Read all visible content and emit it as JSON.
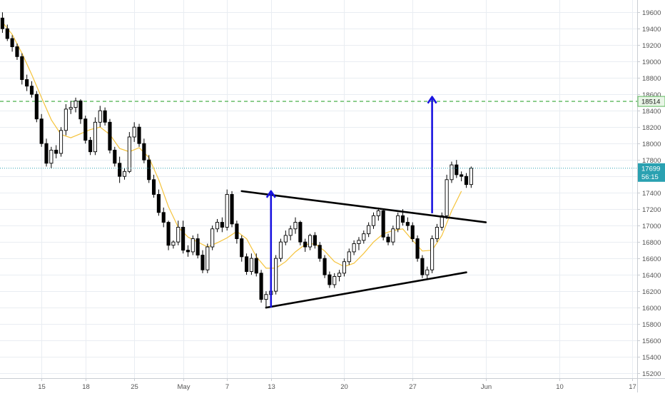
{
  "colors": {
    "up": "#ffffff",
    "down": "#000000",
    "wick": "#000000",
    "ma": "#f5c33b",
    "grid": "#e9edf2",
    "axis_text": "#555555",
    "trend_line": "#000000",
    "target_arrow": "#1a14e0",
    "resistance": "#5cb85c",
    "price_line": "#2aa1b1",
    "price_badge": "#2aa1b1"
  },
  "chart_data": {
    "type": "candlestick",
    "x_tick_labels": [
      {
        "label": "15",
        "index": 8
      },
      {
        "label": "18",
        "index": 17
      },
      {
        "label": "25",
        "index": 27
      },
      {
        "label": "May",
        "index": 37
      },
      {
        "label": "7",
        "index": 46
      },
      {
        "label": "13",
        "index": 55
      },
      {
        "label": "20",
        "index": 70
      },
      {
        "label": "27",
        "index": 84
      },
      {
        "label": "Jun",
        "index": 99
      },
      {
        "label": "10",
        "index": 114
      },
      {
        "label": "17",
        "index": 129
      }
    ],
    "y_ticks": [
      15200,
      15400,
      15600,
      15800,
      16000,
      16200,
      16400,
      16600,
      16800,
      17000,
      17200,
      17400,
      17600,
      17800,
      18000,
      18200,
      18400,
      18600,
      18800,
      19000,
      19200,
      19400,
      19600
    ],
    "ylim": [
      15140,
      19750
    ],
    "xlim": [
      -0.5,
      130
    ],
    "grid": true,
    "horizontal_level": {
      "label": "18514",
      "value": 18514
    },
    "last_price": {
      "label": "17699",
      "value": 17699
    },
    "countdown": "56:15",
    "annotations": {
      "triangle_upper_line": [
        [
          49,
          17420
        ],
        [
          99,
          17040
        ]
      ],
      "triangle_lower_line": [
        [
          54,
          16000
        ],
        [
          95,
          16430
        ]
      ],
      "arrow_left": [
        [
          55,
          16000
        ],
        [
          55,
          17420
        ]
      ],
      "arrow_right": [
        [
          88,
          17150
        ],
        [
          88,
          18570
        ]
      ]
    },
    "series": [
      {
        "type": "ohlc",
        "values": [
          [
            19530,
            19600,
            19350,
            19400
          ],
          [
            19400,
            19450,
            19250,
            19280
          ],
          [
            19280,
            19320,
            19120,
            19180
          ],
          [
            19180,
            19220,
            19020,
            19060
          ],
          [
            19060,
            19100,
            18720,
            18780
          ],
          [
            18780,
            18840,
            18640,
            18700
          ],
          [
            18700,
            18760,
            18560,
            18600
          ],
          [
            18600,
            18640,
            18260,
            18300
          ],
          [
            18300,
            18360,
            17960,
            18000
          ],
          [
            18000,
            18060,
            17720,
            17760
          ],
          [
            17760,
            17960,
            17700,
            17920
          ],
          [
            17920,
            17980,
            17820,
            17880
          ],
          [
            17880,
            18200,
            17840,
            18160
          ],
          [
            18160,
            18480,
            18100,
            18420
          ],
          [
            18420,
            18520,
            18360,
            18440
          ],
          [
            18440,
            18560,
            18380,
            18520
          ],
          [
            18520,
            18540,
            18240,
            18300
          ],
          [
            18300,
            18340,
            18000,
            18040
          ],
          [
            18040,
            18080,
            17860,
            17900
          ],
          [
            17900,
            18320,
            17860,
            18260
          ],
          [
            18260,
            18460,
            18200,
            18400
          ],
          [
            18400,
            18440,
            18220,
            18260
          ],
          [
            18260,
            18300,
            17880,
            17920
          ],
          [
            17920,
            17960,
            17720,
            17760
          ],
          [
            17760,
            17840,
            17520,
            17600
          ],
          [
            17600,
            17700,
            17560,
            17660
          ],
          [
            17660,
            18140,
            17640,
            18080
          ],
          [
            18080,
            18260,
            18020,
            18200
          ],
          [
            18200,
            18240,
            17960,
            18000
          ],
          [
            18000,
            18060,
            17760,
            17800
          ],
          [
            17800,
            17860,
            17520,
            17560
          ],
          [
            17560,
            17620,
            17340,
            17380
          ],
          [
            17380,
            17440,
            17120,
            17160
          ],
          [
            17160,
            17220,
            16980,
            17040
          ],
          [
            17040,
            17060,
            16700,
            16760
          ],
          [
            16760,
            16820,
            16720,
            16800
          ],
          [
            16800,
            17060,
            16760,
            16980
          ],
          [
            16980,
            17060,
            16660,
            16700
          ],
          [
            16700,
            16760,
            16620,
            16680
          ],
          [
            16680,
            16880,
            16640,
            16840
          ],
          [
            16840,
            16900,
            16600,
            16640
          ],
          [
            16640,
            16700,
            16420,
            16460
          ],
          [
            16460,
            16780,
            16420,
            16740
          ],
          [
            16740,
            17000,
            16700,
            16960
          ],
          [
            16960,
            17080,
            16920,
            17040
          ],
          [
            17040,
            17100,
            16920,
            16980
          ],
          [
            16980,
            17440,
            16940,
            17380
          ],
          [
            17380,
            17420,
            16980,
            17020
          ],
          [
            17020,
            17060,
            16780,
            16840
          ],
          [
            16840,
            16880,
            16560,
            16620
          ],
          [
            16620,
            16660,
            16400,
            16440
          ],
          [
            16440,
            16660,
            16400,
            16600
          ],
          [
            16600,
            16660,
            16380,
            16420
          ],
          [
            16420,
            16460,
            16060,
            16100
          ],
          [
            16100,
            16200,
            16000,
            16160
          ],
          [
            16160,
            16240,
            16120,
            16200
          ],
          [
            16200,
            16640,
            16160,
            16600
          ],
          [
            16600,
            16840,
            16560,
            16800
          ],
          [
            16800,
            16940,
            16760,
            16880
          ],
          [
            16880,
            17000,
            16820,
            16960
          ],
          [
            16960,
            17100,
            16900,
            17040
          ],
          [
            17040,
            17060,
            16760,
            16800
          ],
          [
            16800,
            16840,
            16680,
            16740
          ],
          [
            16740,
            16900,
            16700,
            16880
          ],
          [
            16880,
            16920,
            16720,
            16760
          ],
          [
            16760,
            16800,
            16560,
            16600
          ],
          [
            16600,
            16640,
            16360,
            16400
          ],
          [
            16400,
            16440,
            16240,
            16280
          ],
          [
            16280,
            16420,
            16240,
            16380
          ],
          [
            16380,
            16460,
            16320,
            16420
          ],
          [
            16420,
            16600,
            16380,
            16560
          ],
          [
            16560,
            16720,
            16520,
            16680
          ],
          [
            16680,
            16820,
            16640,
            16780
          ],
          [
            16780,
            16860,
            16700,
            16820
          ],
          [
            16820,
            16940,
            16780,
            16900
          ],
          [
            16900,
            17040,
            16860,
            17000
          ],
          [
            17000,
            17160,
            16960,
            17120
          ],
          [
            17120,
            17220,
            17060,
            17180
          ],
          [
            17180,
            17200,
            16820,
            16860
          ],
          [
            16860,
            16900,
            16760,
            16800
          ],
          [
            16800,
            17000,
            16760,
            16960
          ],
          [
            16960,
            17160,
            16920,
            17120
          ],
          [
            17120,
            17200,
            17000,
            17040
          ],
          [
            17040,
            17100,
            16940,
            17000
          ],
          [
            17000,
            17040,
            16800,
            16840
          ],
          [
            16840,
            16880,
            16560,
            16600
          ],
          [
            16600,
            16640,
            16360,
            16400
          ],
          [
            16400,
            16500,
            16340,
            16460
          ],
          [
            16460,
            16880,
            16420,
            16840
          ],
          [
            16840,
            17020,
            16800,
            16980
          ],
          [
            16980,
            17160,
            16940,
            17120
          ],
          [
            17120,
            17620,
            17080,
            17560
          ],
          [
            17560,
            17780,
            17520,
            17740
          ],
          [
            17740,
            17800,
            17580,
            17620
          ],
          [
            17620,
            17660,
            17540,
            17600
          ],
          [
            17600,
            17640,
            17460,
            17500
          ],
          [
            17500,
            17720,
            17460,
            17699
          ]
        ]
      },
      {
        "type": "ma",
        "values": [
          [
            0,
            19480
          ],
          [
            2,
            19330
          ],
          [
            4,
            19100
          ],
          [
            6,
            18840
          ],
          [
            8,
            18560
          ],
          [
            10,
            18290
          ],
          [
            12,
            18110
          ],
          [
            14,
            18070
          ],
          [
            16,
            18120
          ],
          [
            18,
            18170
          ],
          [
            20,
            18200
          ],
          [
            22,
            18110
          ],
          [
            24,
            17940
          ],
          [
            26,
            17900
          ],
          [
            28,
            17950
          ],
          [
            30,
            17830
          ],
          [
            32,
            17560
          ],
          [
            34,
            17230
          ],
          [
            36,
            16980
          ],
          [
            38,
            16860
          ],
          [
            40,
            16800
          ],
          [
            42,
            16740
          ],
          [
            44,
            16790
          ],
          [
            46,
            16850
          ],
          [
            48,
            16930
          ],
          [
            50,
            16840
          ],
          [
            52,
            16620
          ],
          [
            54,
            16480
          ],
          [
            56,
            16480
          ],
          [
            58,
            16560
          ],
          [
            60,
            16680
          ],
          [
            62,
            16770
          ],
          [
            64,
            16780
          ],
          [
            66,
            16690
          ],
          [
            68,
            16560
          ],
          [
            70,
            16500
          ],
          [
            72,
            16540
          ],
          [
            74,
            16660
          ],
          [
            76,
            16800
          ],
          [
            78,
            16900
          ],
          [
            80,
            16940
          ],
          [
            82,
            16960
          ],
          [
            84,
            16820
          ],
          [
            86,
            16690
          ],
          [
            88,
            16700
          ],
          [
            90,
            16880
          ],
          [
            92,
            17180
          ],
          [
            94,
            17420
          ]
        ]
      }
    ]
  }
}
